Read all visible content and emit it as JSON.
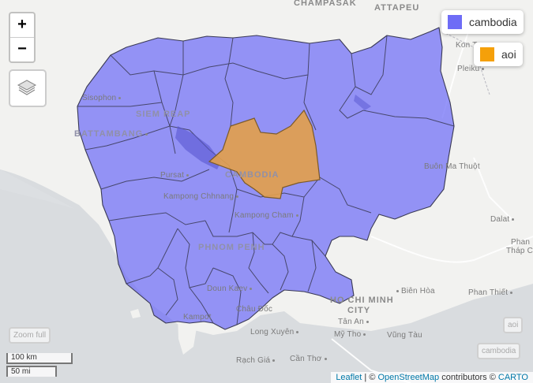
{
  "map": {
    "zoom_in_label": "+",
    "zoom_out_label": "−",
    "legend": [
      {
        "label": "cambodia",
        "color": "#6e6cf6"
      },
      {
        "label": "aoi",
        "color": "#f5a00a"
      }
    ],
    "layer_buttons": {
      "zoom_full": "Zoom full",
      "aoi": "aoi",
      "cambodia": "cambodia"
    },
    "scale": {
      "km": "100 km",
      "mi": "50 mi"
    },
    "attribution": {
      "leaflet": "Leaflet",
      "sep1": " | © ",
      "osm": "OpenStreetMap",
      "contrib": " contributors © ",
      "carto": "CARTO"
    },
    "places": {
      "champasak": "CHAMPASAK",
      "attapeu": "ATTAPEU",
      "kon_tum": "Kon Tum",
      "pleiku": "Pleiku",
      "sisophon": "Sisophon",
      "siem_reap": "SIEM REAP",
      "battambang": "BATTAMBANG",
      "cambodia": "CAMBODIA",
      "pursat": "Pursat",
      "kampong_chhnang": "Kampong Chhnang",
      "kampong_cham": "Kampong Cham",
      "buon_ma_thuot": "Buôn Ma Thuột",
      "phnom_penh": "PHNOM PENH",
      "doun_kaev": "Doun Kaev",
      "chau_doc": "Châu Đốc",
      "kampot": "Kampot",
      "ho_chi_minh": "HO CHI MINH",
      "city": "CITY",
      "bien_hoa": "Biên Hòa",
      "phan_thiet": "Phan Thiết",
      "dalat": "Dalat",
      "phan_rang": "Phan",
      "thap_cham": "Tháp Chàm",
      "tan_an": "Tân An",
      "long_xuyen": "Long Xuyên",
      "my_tho": "Mỹ Tho",
      "vung_tau": "Vũng Tàu",
      "rach_gia": "Rạch Giá",
      "can_tho": "Cần Thơ"
    }
  }
}
